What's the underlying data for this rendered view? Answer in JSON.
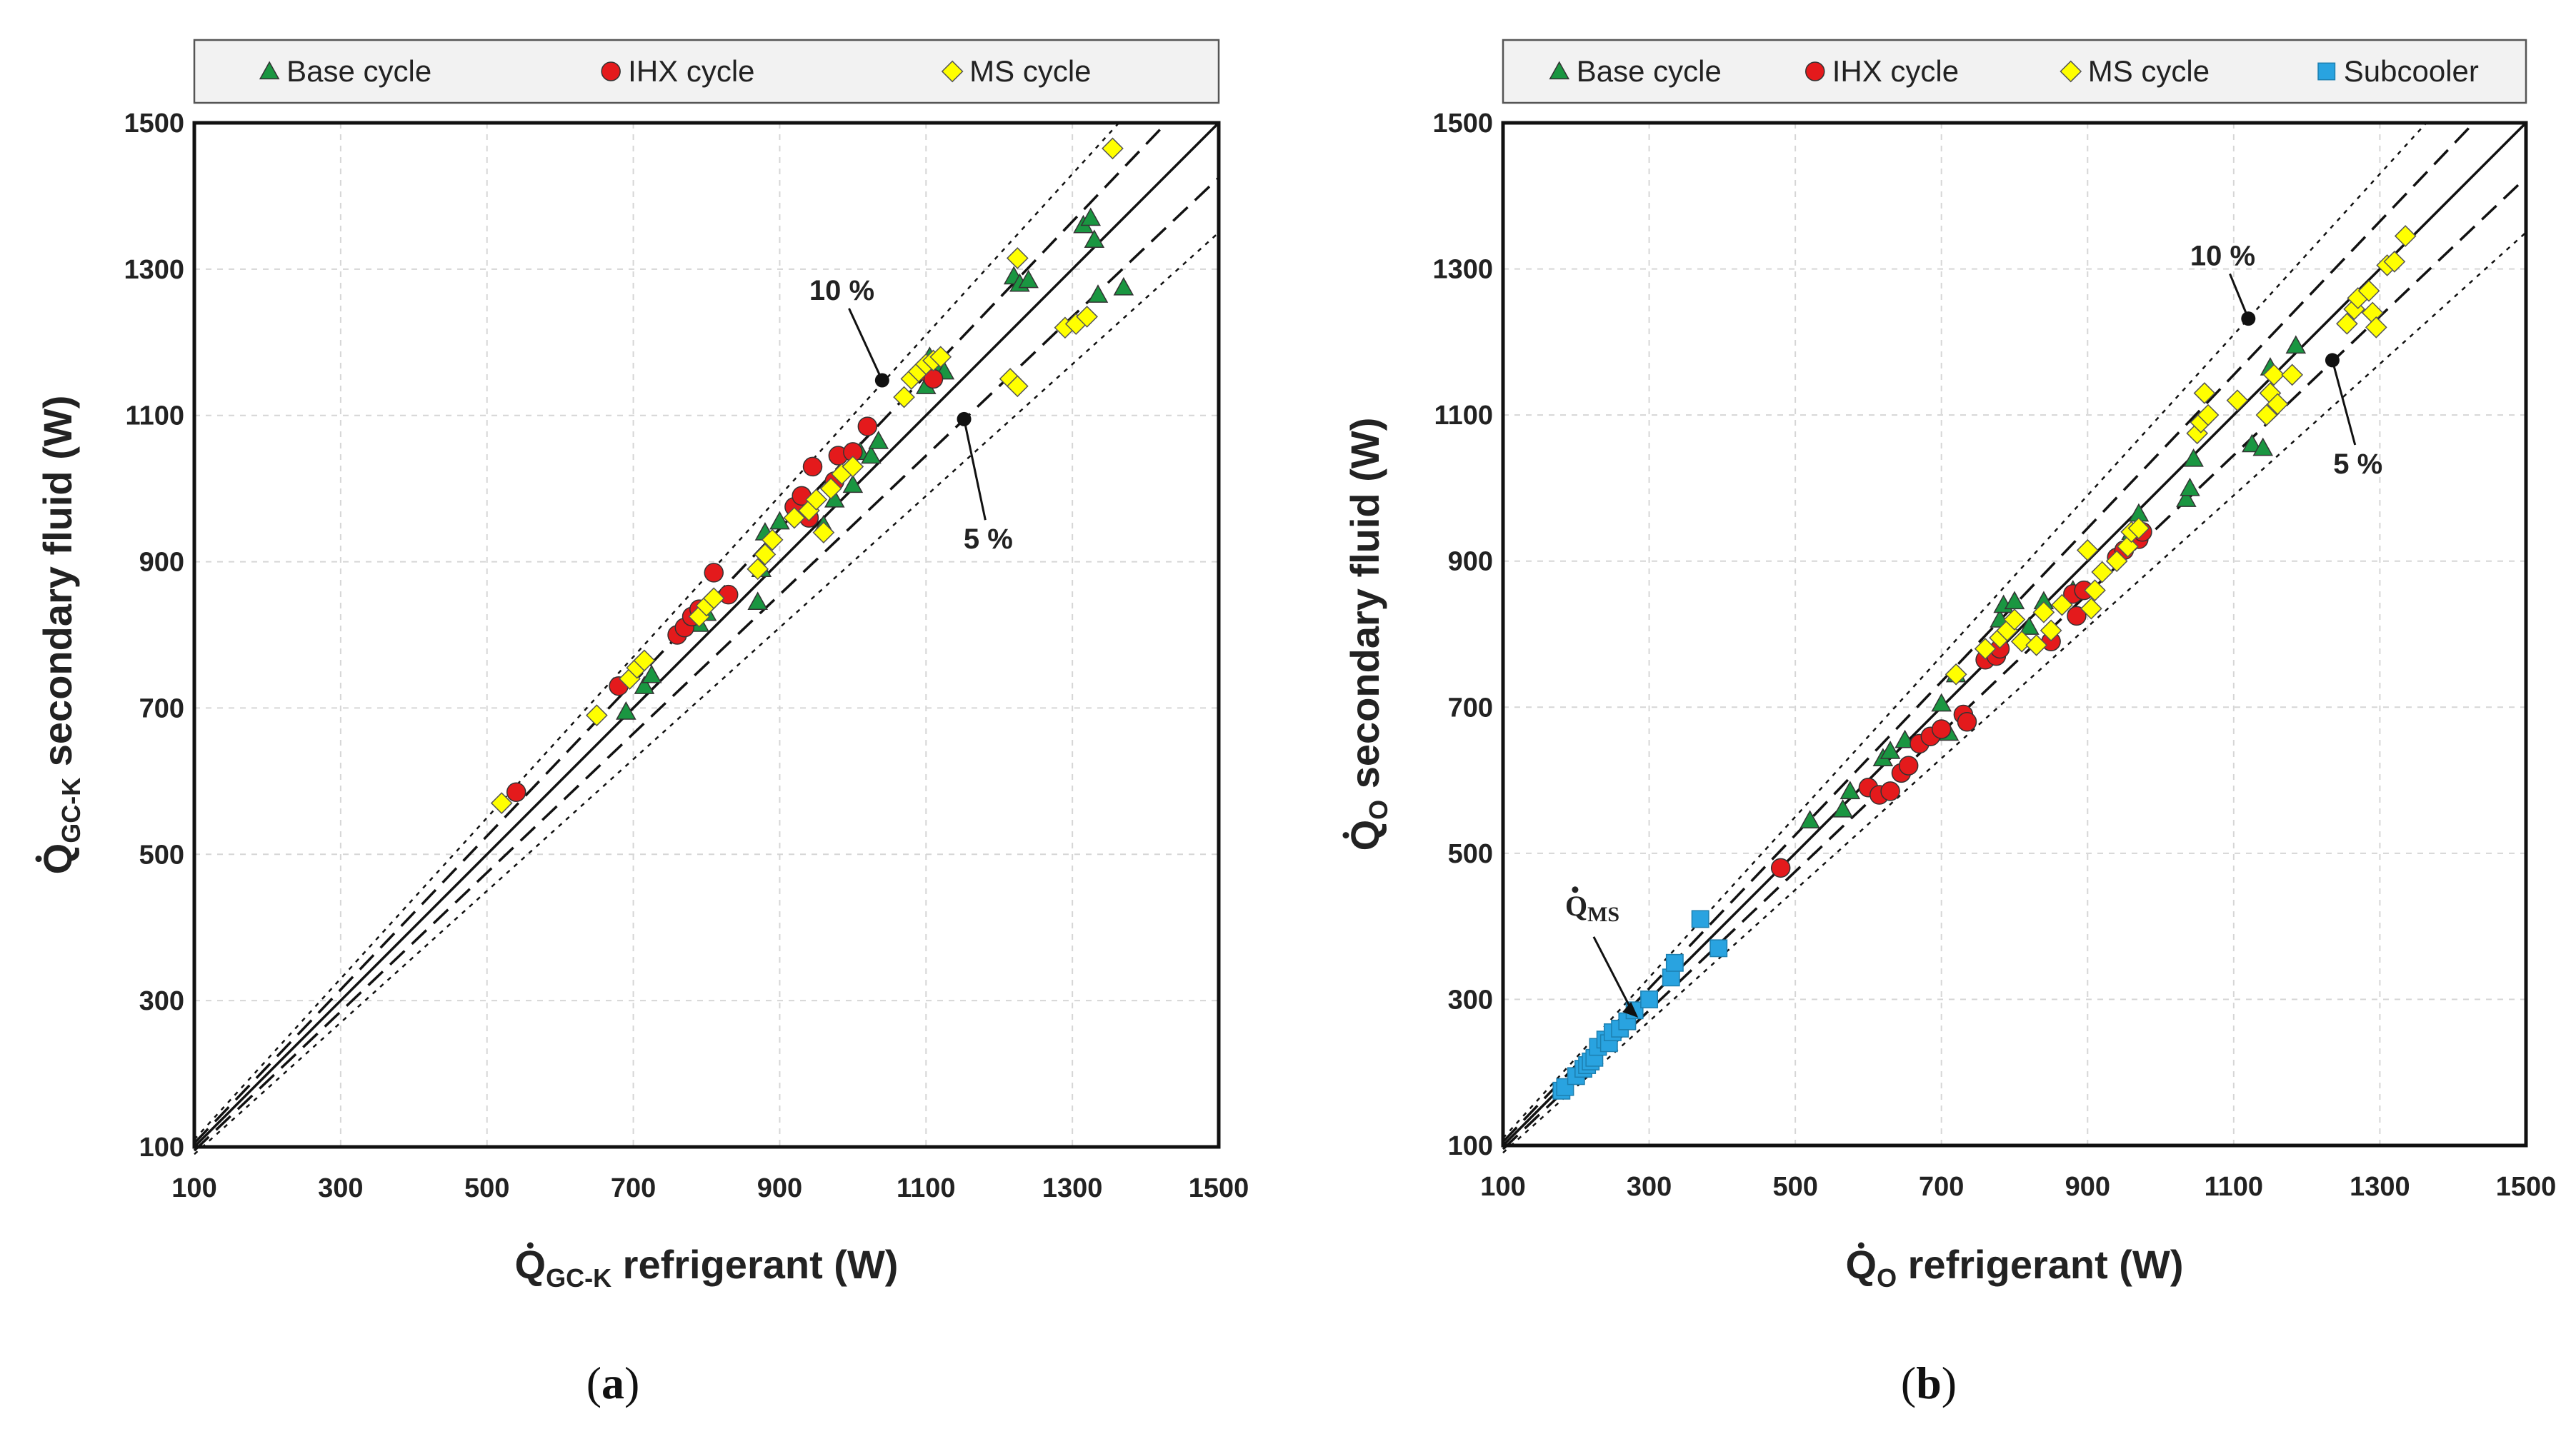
{
  "chart_data": [
    {
      "type": "scatter",
      "panel_label": "a",
      "xlabel": {
        "symbol": "Q",
        "subscript": "GC-K",
        "rest": " refrigerant (W)"
      },
      "ylabel": {
        "symbol": "Q",
        "subscript": "GC-K",
        "rest": " secondary fluid (W)"
      },
      "xlim": [
        100,
        1500
      ],
      "ylim": [
        100,
        1500
      ],
      "ticks": [
        "100",
        "300",
        "500",
        "700",
        "900",
        "1100",
        "1300",
        "1500"
      ],
      "grid": true,
      "legend_position": "top",
      "reference_lines": {
        "identity": true,
        "dashed_percent": 5,
        "dotted_percent": 10
      },
      "annotations": [
        {
          "text": "10 %",
          "point": [
            1040,
            1148
          ],
          "label_at": [
            985,
            1258
          ]
        },
        {
          "text": "5 %",
          "point": [
            1152,
            1095
          ],
          "label_at": [
            1185,
            918
          ]
        }
      ],
      "series": [
        {
          "name": "Base cycle",
          "marker": "triangle",
          "color": "#1a9641",
          "points": [
            [
              690,
              695
            ],
            [
              715,
              730
            ],
            [
              725,
              745
            ],
            [
              790,
              815
            ],
            [
              800,
              830
            ],
            [
              870,
              845
            ],
            [
              875,
              890
            ],
            [
              880,
              940
            ],
            [
              900,
              955
            ],
            [
              960,
              950
            ],
            [
              975,
              985
            ],
            [
              1000,
              1005
            ],
            [
              1010,
              1050
            ],
            [
              1025,
              1045
            ],
            [
              1035,
              1065
            ],
            [
              1100,
              1140
            ],
            [
              1105,
              1180
            ],
            [
              1115,
              1165
            ],
            [
              1125,
              1160
            ],
            [
              1220,
              1290
            ],
            [
              1228,
              1280
            ],
            [
              1240,
              1285
            ],
            [
              1315,
              1360
            ],
            [
              1325,
              1370
            ],
            [
              1330,
              1340
            ],
            [
              1335,
              1265
            ],
            [
              1370,
              1275
            ]
          ]
        },
        {
          "name": "IHX cycle",
          "marker": "circle",
          "color": "#e41a1c",
          "points": [
            [
              540,
              585
            ],
            [
              680,
              730
            ],
            [
              760,
              800
            ],
            [
              770,
              810
            ],
            [
              780,
              825
            ],
            [
              790,
              835
            ],
            [
              810,
              885
            ],
            [
              830,
              855
            ],
            [
              920,
              975
            ],
            [
              930,
              990
            ],
            [
              940,
              960
            ],
            [
              945,
              1030
            ],
            [
              975,
              1010
            ],
            [
              980,
              1045
            ],
            [
              1000,
              1050
            ],
            [
              1020,
              1085
            ],
            [
              1100,
              1160
            ],
            [
              1110,
              1150
            ]
          ]
        },
        {
          "name": "MS cycle",
          "marker": "diamond",
          "color": "#ffff00",
          "points": [
            [
              520,
              570
            ],
            [
              650,
              690
            ],
            [
              695,
              740
            ],
            [
              705,
              755
            ],
            [
              715,
              765
            ],
            [
              790,
              825
            ],
            [
              800,
              840
            ],
            [
              810,
              850
            ],
            [
              870,
              890
            ],
            [
              880,
              910
            ],
            [
              890,
              930
            ],
            [
              920,
              960
            ],
            [
              940,
              970
            ],
            [
              950,
              985
            ],
            [
              960,
              940
            ],
            [
              970,
              1000
            ],
            [
              985,
              1020
            ],
            [
              1000,
              1030
            ],
            [
              1070,
              1125
            ],
            [
              1080,
              1150
            ],
            [
              1090,
              1160
            ],
            [
              1100,
              1170
            ],
            [
              1110,
              1175
            ],
            [
              1120,
              1180
            ],
            [
              1215,
              1150
            ],
            [
              1225,
              1140
            ],
            [
              1225,
              1315
            ],
            [
              1290,
              1220
            ],
            [
              1305,
              1225
            ],
            [
              1320,
              1235
            ],
            [
              1355,
              1465
            ]
          ]
        }
      ]
    },
    {
      "type": "scatter",
      "panel_label": "b",
      "xlabel": {
        "symbol": "Q",
        "subscript": "O",
        "rest": " refrigerant (W)"
      },
      "ylabel": {
        "symbol": "Q",
        "subscript": "O",
        "rest": " secondary fluid (W)"
      },
      "xlim": [
        100,
        1500
      ],
      "ylim": [
        100,
        1500
      ],
      "ticks": [
        "100",
        "300",
        "500",
        "700",
        "900",
        "1100",
        "1300",
        "1500"
      ],
      "grid": true,
      "legend_position": "top",
      "reference_lines": {
        "identity": true,
        "dashed_percent": 5,
        "dotted_percent": 10
      },
      "annotations": [
        {
          "text": "10 %",
          "point": [
            1120,
            1232
          ],
          "label_at": [
            1085,
            1305
          ]
        },
        {
          "text": "5 %",
          "point": [
            1235,
            1175
          ],
          "label_at": [
            1270,
            1020
          ]
        },
        {
          "text": "MS",
          "symbol": "Q",
          "point": [
            285,
            275
          ],
          "label_at": [
            185,
            415
          ]
        }
      ],
      "series": [
        {
          "name": "Base cycle",
          "marker": "triangle",
          "color": "#1a9641",
          "points": [
            [
              520,
              545
            ],
            [
              565,
              560
            ],
            [
              575,
              585
            ],
            [
              620,
              630
            ],
            [
              630,
              640
            ],
            [
              650,
              655
            ],
            [
              700,
              705
            ],
            [
              710,
              665
            ],
            [
              720,
              745
            ],
            [
              780,
              820
            ],
            [
              785,
              840
            ],
            [
              800,
              845
            ],
            [
              820,
              810
            ],
            [
              840,
              845
            ],
            [
              880,
              860
            ],
            [
              960,
              940
            ],
            [
              970,
              965
            ],
            [
              1035,
              985
            ],
            [
              1040,
              1000
            ],
            [
              1045,
              1040
            ],
            [
              1125,
              1060
            ],
            [
              1140,
              1055
            ],
            [
              1150,
              1165
            ],
            [
              1185,
              1195
            ]
          ]
        },
        {
          "name": "IHX cycle",
          "marker": "circle",
          "color": "#e41a1c",
          "points": [
            [
              480,
              480
            ],
            [
              600,
              590
            ],
            [
              615,
              580
            ],
            [
              630,
              585
            ],
            [
              645,
              610
            ],
            [
              655,
              620
            ],
            [
              670,
              650
            ],
            [
              685,
              660
            ],
            [
              700,
              670
            ],
            [
              730,
              690
            ],
            [
              735,
              680
            ],
            [
              760,
              765
            ],
            [
              775,
              770
            ],
            [
              780,
              780
            ],
            [
              850,
              790
            ],
            [
              880,
              855
            ],
            [
              885,
              825
            ],
            [
              895,
              860
            ],
            [
              940,
              905
            ],
            [
              950,
              915
            ],
            [
              970,
              930
            ],
            [
              975,
              940
            ]
          ]
        },
        {
          "name": "MS cycle",
          "marker": "diamond",
          "color": "#ffff00",
          "points": [
            [
              720,
              745
            ],
            [
              760,
              780
            ],
            [
              780,
              795
            ],
            [
              790,
              805
            ],
            [
              800,
              820
            ],
            [
              810,
              790
            ],
            [
              830,
              785
            ],
            [
              840,
              830
            ],
            [
              850,
              805
            ],
            [
              865,
              840
            ],
            [
              900,
              915
            ],
            [
              905,
              835
            ],
            [
              910,
              860
            ],
            [
              920,
              885
            ],
            [
              940,
              900
            ],
            [
              955,
              920
            ],
            [
              960,
              940
            ],
            [
              970,
              945
            ],
            [
              1050,
              1075
            ],
            [
              1055,
              1090
            ],
            [
              1060,
              1130
            ],
            [
              1065,
              1100
            ],
            [
              1105,
              1120
            ],
            [
              1145,
              1100
            ],
            [
              1150,
              1130
            ],
            [
              1155,
              1155
            ],
            [
              1160,
              1115
            ],
            [
              1180,
              1155
            ],
            [
              1255,
              1225
            ],
            [
              1265,
              1245
            ],
            [
              1270,
              1260
            ],
            [
              1285,
              1270
            ],
            [
              1290,
              1240
            ],
            [
              1295,
              1220
            ],
            [
              1310,
              1305
            ],
            [
              1320,
              1310
            ],
            [
              1335,
              1345
            ]
          ]
        },
        {
          "name": "Subcooler",
          "marker": "square",
          "color": "#29a3e0",
          "points": [
            [
              180,
              175
            ],
            [
              185,
              180
            ],
            [
              200,
              195
            ],
            [
              210,
              205
            ],
            [
              215,
              210
            ],
            [
              220,
              215
            ],
            [
              225,
              220
            ],
            [
              230,
              235
            ],
            [
              240,
              245
            ],
            [
              245,
              240
            ],
            [
              250,
              255
            ],
            [
              260,
              260
            ],
            [
              270,
              270
            ],
            [
              280,
              285
            ],
            [
              300,
              300
            ],
            [
              330,
              330
            ],
            [
              335,
              350
            ],
            [
              370,
              410
            ],
            [
              395,
              370
            ]
          ]
        }
      ]
    }
  ]
}
